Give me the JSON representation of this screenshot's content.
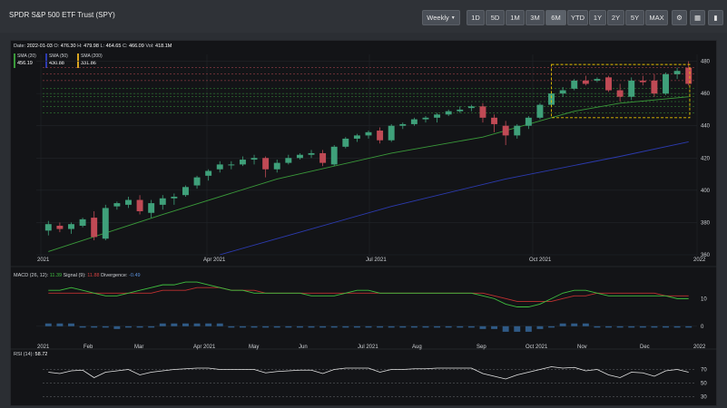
{
  "header": {
    "title": "SPDR S&P 500 ETF Trust (SPY)"
  },
  "toolbar": {
    "interval": "Weekly",
    "ranges": [
      "1D",
      "5D",
      "1M",
      "3M",
      "6M",
      "YTD",
      "1Y",
      "2Y",
      "5Y",
      "MAX"
    ],
    "active_range": "6M"
  },
  "ohlc": {
    "date_label": "Date:",
    "date": "2022-01-03",
    "o_label": "O:",
    "o": "476.30",
    "h_label": "H:",
    "h": "479.98",
    "l_label": "L:",
    "l": "464.65",
    "c_label": "C:",
    "c": "466.09",
    "vol_label": "Vol:",
    "vol": "418.1M"
  },
  "sma": [
    {
      "label": "SMA (20)",
      "value": "456.19",
      "color": "#3a9a3a"
    },
    {
      "label": "SMA (50)",
      "value": "430.88",
      "color": "#2c3bb0"
    },
    {
      "label": "SMA (200)",
      "value": "331.86",
      "color": "#d9a520"
    }
  ],
  "price_axis": [
    "480",
    "460",
    "440",
    "420",
    "400",
    "380",
    "360"
  ],
  "price_x_ticks": [
    "2021",
    "Apr 2021",
    "Jul 2021",
    "Oct 2021",
    "2022"
  ],
  "macd": {
    "label": "MACD (26, 12):",
    "macd": "11.39",
    "signal_label": "Signal (9):",
    "signal": "11.88",
    "div_label": "Divergence:",
    "div": "-0.49",
    "axis": [
      "10",
      "0"
    ]
  },
  "month_ticks": [
    "2021",
    "Feb",
    "Mar",
    "Apr 2021",
    "May",
    "Jun",
    "Jul 2021",
    "Aug",
    "Sep",
    "Oct 2021",
    "Nov",
    "Dec",
    "2022"
  ],
  "rsi": {
    "label": "RSI (14):",
    "value": "58.72",
    "axis": [
      "70",
      "50",
      "30"
    ]
  },
  "colors": {
    "up": "#3fa07a",
    "down": "#c04a55",
    "sma20": "#3a9a3a",
    "sma50": "#2c3bb0",
    "highlight": "#e8c000"
  },
  "chart_data": {
    "type": "candlestick",
    "candles_ohlc": [
      [
        375,
        381,
        372,
        379
      ],
      [
        378,
        380,
        374,
        376
      ],
      [
        376,
        380,
        373,
        379
      ],
      [
        378,
        383,
        377,
        382
      ],
      [
        383,
        387,
        369,
        371
      ],
      [
        370,
        391,
        369,
        389
      ],
      [
        390,
        393,
        388,
        392
      ],
      [
        391,
        396,
        389,
        394
      ],
      [
        394,
        397,
        385,
        387
      ],
      [
        386,
        394,
        383,
        392
      ],
      [
        391,
        397,
        388,
        395
      ],
      [
        395,
        398,
        391,
        396
      ],
      [
        397,
        403,
        396,
        402
      ],
      [
        403,
        409,
        401,
        408
      ],
      [
        409,
        413,
        406,
        412
      ],
      [
        413,
        418,
        411,
        416
      ],
      [
        416,
        418,
        413,
        416
      ],
      [
        416,
        421,
        415,
        419
      ],
      [
        419,
        422,
        416,
        420
      ],
      [
        420,
        421,
        408,
        413
      ],
      [
        413,
        419,
        411,
        417
      ],
      [
        417,
        422,
        416,
        420
      ],
      [
        420,
        423,
        419,
        422
      ],
      [
        422,
        425,
        420,
        423
      ],
      [
        423,
        425,
        415,
        417
      ],
      [
        416,
        428,
        415,
        427
      ],
      [
        427,
        433,
        426,
        432
      ],
      [
        432,
        435,
        430,
        434
      ],
      [
        434,
        437,
        432,
        436
      ],
      [
        437,
        439,
        429,
        431
      ],
      [
        431,
        441,
        430,
        440
      ],
      [
        440,
        442,
        438,
        441
      ],
      [
        441,
        445,
        440,
        444
      ],
      [
        444,
        446,
        442,
        445
      ],
      [
        445,
        448,
        442,
        447
      ],
      [
        447,
        450,
        446,
        449
      ],
      [
        449,
        452,
        448,
        450
      ],
      [
        451,
        453,
        449,
        452
      ],
      [
        452,
        454,
        442,
        445
      ],
      [
        445,
        447,
        436,
        441
      ],
      [
        440,
        443,
        428,
        434
      ],
      [
        434,
        441,
        432,
        440
      ],
      [
        440,
        446,
        438,
        445
      ],
      [
        445,
        454,
        444,
        453
      ],
      [
        453,
        461,
        452,
        460
      ],
      [
        460,
        464,
        458,
        462
      ],
      [
        463,
        469,
        462,
        468
      ],
      [
        468,
        471,
        465,
        466
      ],
      [
        468,
        470,
        467,
        469
      ],
      [
        470,
        471,
        461,
        462
      ],
      [
        462,
        466,
        455,
        458
      ],
      [
        458,
        470,
        456,
        468
      ],
      [
        468,
        471,
        465,
        467
      ],
      [
        468,
        472,
        458,
        460
      ],
      [
        460,
        473,
        459,
        472
      ],
      [
        472,
        476,
        469,
        474
      ],
      [
        476,
        480,
        465,
        466
      ]
    ],
    "sma20_path": [
      [
        0,
        362
      ],
      [
        10,
        385
      ],
      [
        20,
        407
      ],
      [
        30,
        423
      ],
      [
        38,
        433
      ],
      [
        42,
        441
      ],
      [
        46,
        449
      ],
      [
        50,
        454
      ],
      [
        56,
        458
      ]
    ],
    "sma50_path": [
      [
        15,
        360
      ],
      [
        20,
        370
      ],
      [
        30,
        390
      ],
      [
        40,
        407
      ],
      [
        50,
        421
      ],
      [
        56,
        430
      ]
    ],
    "highlight_box_price_range": [
      445,
      478
    ],
    "highlight_box_candle_range": [
      44.5,
      56.6
    ],
    "ylim": [
      360,
      482
    ],
    "macd_line": [
      13,
      13,
      14,
      13,
      12,
      11,
      11,
      12,
      13,
      14,
      15,
      15,
      16,
      16,
      15,
      14,
      13,
      13,
      12,
      12,
      12,
      12,
      12,
      11,
      11,
      11,
      12,
      13,
      13,
      12,
      12,
      12,
      12,
      12,
      12,
      12,
      12,
      12,
      11,
      10,
      8,
      7,
      7,
      8,
      10,
      12,
      13,
      13,
      12,
      11,
      11,
      11,
      11,
      11,
      11,
      10,
      10
    ],
    "signal_line": [
      12,
      12,
      12,
      12,
      12,
      12,
      12,
      12,
      12,
      12,
      13,
      13,
      13,
      14,
      14,
      14,
      13,
      13,
      13,
      12,
      12,
      12,
      12,
      12,
      12,
      12,
      12,
      12,
      12,
      12,
      12,
      12,
      12,
      12,
      12,
      12,
      12,
      12,
      12,
      11,
      10,
      9,
      9,
      9,
      9,
      10,
      11,
      11,
      12,
      12,
      12,
      12,
      12,
      12,
      11,
      11,
      11
    ],
    "histogram": [
      1,
      1,
      1,
      0,
      0,
      0,
      -1,
      0,
      0,
      0,
      1,
      1,
      1,
      1,
      1,
      1,
      0,
      0,
      0,
      0,
      0,
      0,
      0,
      0,
      0,
      0,
      0,
      0,
      0,
      0,
      0,
      0,
      0,
      0,
      0,
      0,
      0,
      0,
      -1,
      -1,
      -2,
      -2,
      -2,
      -1,
      0,
      1,
      1,
      1,
      0,
      0,
      0,
      0,
      0,
      0,
      0,
      0,
      0
    ],
    "rsi_values": [
      66,
      64,
      68,
      69,
      58,
      66,
      68,
      70,
      62,
      66,
      68,
      70,
      71,
      72,
      72,
      70,
      70,
      70,
      70,
      65,
      67,
      68,
      69,
      69,
      64,
      70,
      72,
      72,
      72,
      66,
      70,
      70,
      71,
      71,
      72,
      72,
      72,
      72,
      64,
      60,
      56,
      62,
      66,
      70,
      74,
      72,
      73,
      68,
      70,
      62,
      58,
      66,
      65,
      60,
      68,
      70,
      66
    ]
  }
}
